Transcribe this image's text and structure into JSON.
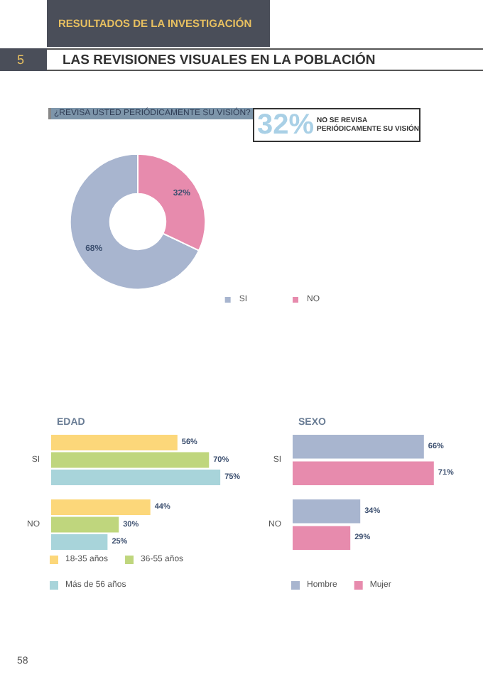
{
  "chart_data": [
    {
      "type": "donut",
      "title": "¿REVISA USTED PERIÓDICAMENTE  SU VISIÓN?",
      "categories": [
        "SI",
        "NO"
      ],
      "values": [
        68,
        32
      ],
      "colors": [
        "#a8b5cf",
        "#e78bad"
      ],
      "value_labels": [
        "68%",
        "32%"
      ],
      "legend": "right",
      "annotations": [
        "RESULTADOS DE LA INVESTIGACIÓN",
        "5",
        "LAS REVISIONES VISUALES EN LA POBLACIÓN",
        "32%",
        "NO SE REVISA PERIÓDICAMENTE SU VISIÓN",
        "58"
      ]
    },
    {
      "type": "bar",
      "orientation": "horizontal",
      "title": "EDAD",
      "categories": [
        "SI",
        "NO"
      ],
      "legend": "bottom",
      "series": [
        {
          "name": "18-35 años",
          "color": "#fcd77a",
          "values": [
            56,
            44
          ],
          "value_labels": [
            "56%",
            "44%"
          ]
        },
        {
          "name": "36-55 años",
          "color": "#bfd67d",
          "values": [
            70,
            30
          ],
          "value_labels": [
            "70%",
            "30%"
          ]
        },
        {
          "name": "Más de 56 años",
          "color": "#a8d4da",
          "values": [
            75,
            25
          ],
          "value_labels": [
            "75%",
            "25%"
          ]
        }
      ]
    },
    {
      "type": "bar",
      "orientation": "horizontal",
      "title": "SEXO",
      "categories": [
        "SI",
        "NO"
      ],
      "legend": "bottom",
      "series": [
        {
          "name": "Hombre",
          "color": "#a8b5cf",
          "values": [
            66,
            34
          ],
          "value_labels": [
            "66%",
            "34%"
          ]
        },
        {
          "name": "Mujer",
          "color": "#e78bad",
          "values": [
            71,
            29
          ],
          "value_labels": [
            "71%",
            "29%"
          ]
        }
      ]
    }
  ]
}
